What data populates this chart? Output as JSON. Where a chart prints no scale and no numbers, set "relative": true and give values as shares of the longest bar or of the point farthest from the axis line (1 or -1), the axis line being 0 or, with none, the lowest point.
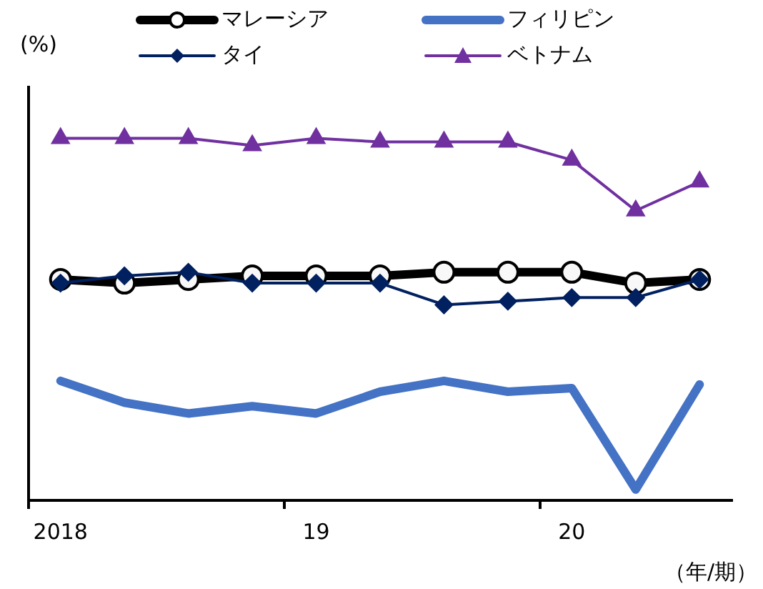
{
  "chart_data": {
    "type": "line",
    "relative": true,
    "ylabel": "(%)",
    "xlabel": "（年/期）",
    "grid": false,
    "legend": "top",
    "categories": [
      "2018",
      null,
      null,
      null,
      "19",
      null,
      null,
      null,
      "20",
      null,
      null
    ],
    "series": [
      {
        "name": "マレーシア",
        "color": "#000000",
        "marker": "circle",
        "values": [
          0.61,
          0.6,
          0.61,
          0.62,
          0.62,
          0.62,
          0.63,
          0.63,
          0.63,
          0.6,
          0.61
        ]
      },
      {
        "name": "フィリピン",
        "color": "#4472c4",
        "marker": "none",
        "values": [
          0.33,
          0.27,
          0.24,
          0.26,
          0.24,
          0.3,
          0.33,
          0.3,
          0.31,
          0.03,
          0.32
        ]
      },
      {
        "name": "タイ",
        "color": "#002060",
        "marker": "diamond",
        "values": [
          0.6,
          0.62,
          0.63,
          0.6,
          0.6,
          0.6,
          0.54,
          0.55,
          0.56,
          0.56,
          0.61
        ]
      },
      {
        "name": "ベトナム",
        "color": "#7030a0",
        "marker": "triangle",
        "values": [
          1.0,
          1.0,
          1.0,
          0.98,
          1.0,
          0.99,
          0.99,
          0.99,
          0.94,
          0.8,
          0.88
        ]
      }
    ]
  }
}
